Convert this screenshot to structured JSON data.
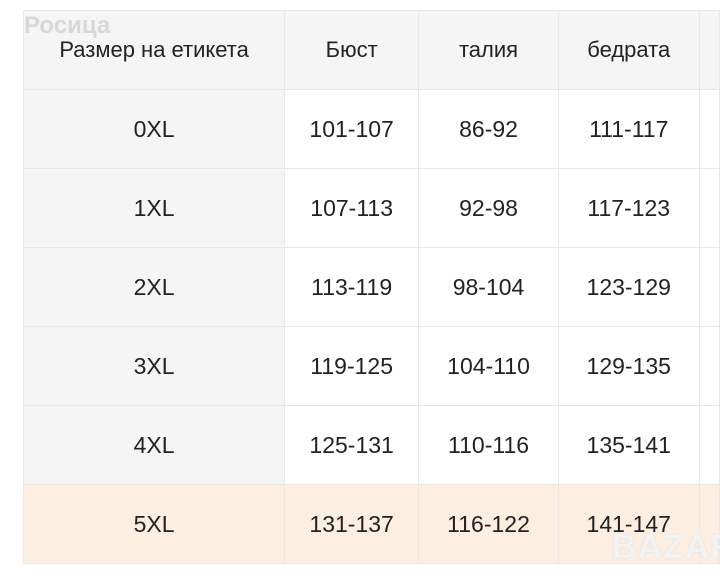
{
  "watermark": "Росица",
  "logo": "BAZAR",
  "headers": [
    "Размер на етикета",
    "Бюст",
    "талия",
    "бедрата",
    ""
  ],
  "rows": [
    [
      "0XL",
      "101-107",
      "86-92",
      "111-117"
    ],
    [
      "1XL",
      "107-113",
      "92-98",
      "117-123"
    ],
    [
      "2XL",
      "113-119",
      "98-104",
      "123-129"
    ],
    [
      "3XL",
      "119-125",
      "104-110",
      "129-135"
    ],
    [
      "4XL",
      "125-131",
      "110-116",
      "135-141"
    ],
    [
      "5XL",
      "131-137",
      "116-122",
      "141-147"
    ]
  ],
  "highlight_color": "#fdeee2"
}
